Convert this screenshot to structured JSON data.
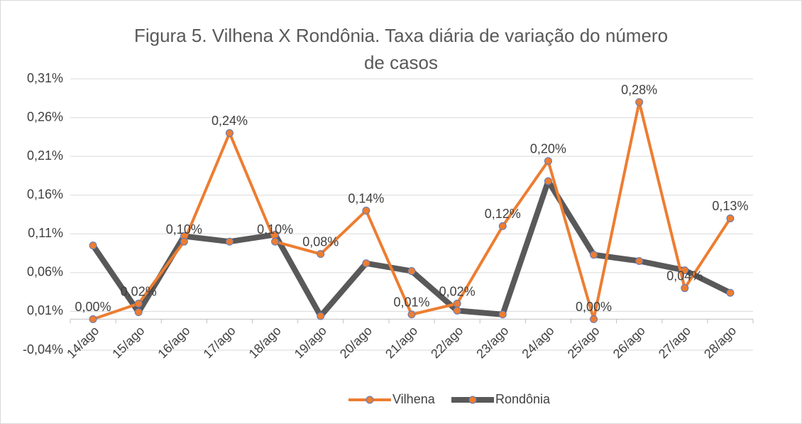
{
  "chart_data": {
    "type": "line",
    "title": "Figura 5. Vilhena X Rondônia. Taxa diária de variação do número de casos",
    "categories": [
      "14/ago",
      "15/ago",
      "16/ago",
      "17/ago",
      "18/ago",
      "19/ago",
      "20/ago",
      "21/ago",
      "22/ago",
      "23/ago",
      "24/ago",
      "25/ago",
      "26/ago",
      "27/ago",
      "28/ago"
    ],
    "series": [
      {
        "name": "Vilhena",
        "color": "#ED7D31",
        "values": [
          0.0,
          0.02,
          0.1,
          0.24,
          0.1,
          0.084,
          0.14,
          0.006,
          0.02,
          0.12,
          0.204,
          0.0,
          0.28,
          0.04,
          0.13
        ],
        "value_labels": [
          "0,00%",
          "0,02%",
          "0,10%",
          "0,24%",
          "0,10%",
          "0,08%",
          "0,14%",
          "0,01%",
          "0,02%",
          "0,12%",
          "0,20%",
          "0,00%",
          "0,28%",
          "0,04%",
          "0,13%"
        ]
      },
      {
        "name": "Rondônia",
        "color": "#595959",
        "values": [
          0.095,
          0.009,
          0.107,
          0.1,
          0.109,
          0.004,
          0.072,
          0.062,
          0.011,
          0.006,
          0.178,
          0.083,
          0.075,
          0.063,
          0.034
        ]
      }
    ],
    "marker_color": "#ED7D31",
    "marker_edge": "#5B7BC0",
    "ylim": [
      -0.04,
      0.31
    ],
    "yticks": [
      {
        "value": -0.04,
        "label": "-0,04%"
      },
      {
        "value": 0.01,
        "label": "0,01%"
      },
      {
        "value": 0.06,
        "label": "0,06%"
      },
      {
        "value": 0.11,
        "label": "0,11%"
      },
      {
        "value": 0.16,
        "label": "0,16%"
      },
      {
        "value": 0.21,
        "label": "0,21%"
      },
      {
        "value": 0.26,
        "label": "0,26%"
      },
      {
        "value": 0.31,
        "label": "0,31%"
      }
    ],
    "grid": true,
    "legend": "bottom"
  }
}
